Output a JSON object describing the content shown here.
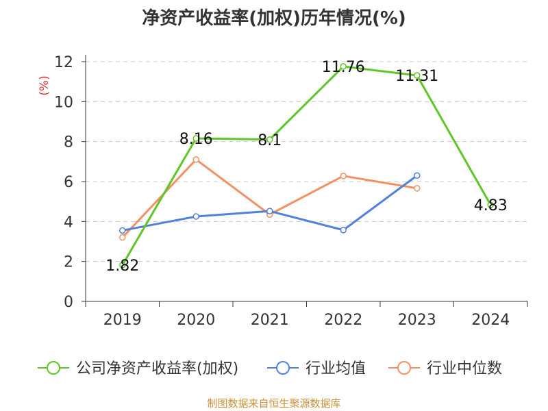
{
  "chart_data": {
    "type": "line",
    "title": "净资产收益率(加权)历年情况(%)",
    "ylabel": "(%)",
    "xlabel": "",
    "ylim": [
      0,
      12
    ],
    "yticks": [
      0,
      2,
      4,
      6,
      8,
      10,
      12
    ],
    "categories": [
      "2019",
      "2020",
      "2021",
      "2022",
      "2023",
      "2024"
    ],
    "grid": true,
    "legend_position": "bottom",
    "series": [
      {
        "name": "公司净资产收益率(加权)",
        "color": "#5ec626",
        "values": [
          1.82,
          8.16,
          8.1,
          11.76,
          11.31,
          4.83
        ],
        "labels": true
      },
      {
        "name": "行业均值",
        "color": "#4f82d8",
        "values": [
          3.55,
          4.25,
          4.52,
          3.57,
          6.3,
          null
        ],
        "labels": false
      },
      {
        "name": "行业中位数",
        "color": "#f39163",
        "values": [
          3.2,
          7.1,
          4.35,
          6.28,
          5.66,
          null
        ],
        "labels": false
      }
    ]
  },
  "source": "制图数据来自恒生聚源数据库"
}
